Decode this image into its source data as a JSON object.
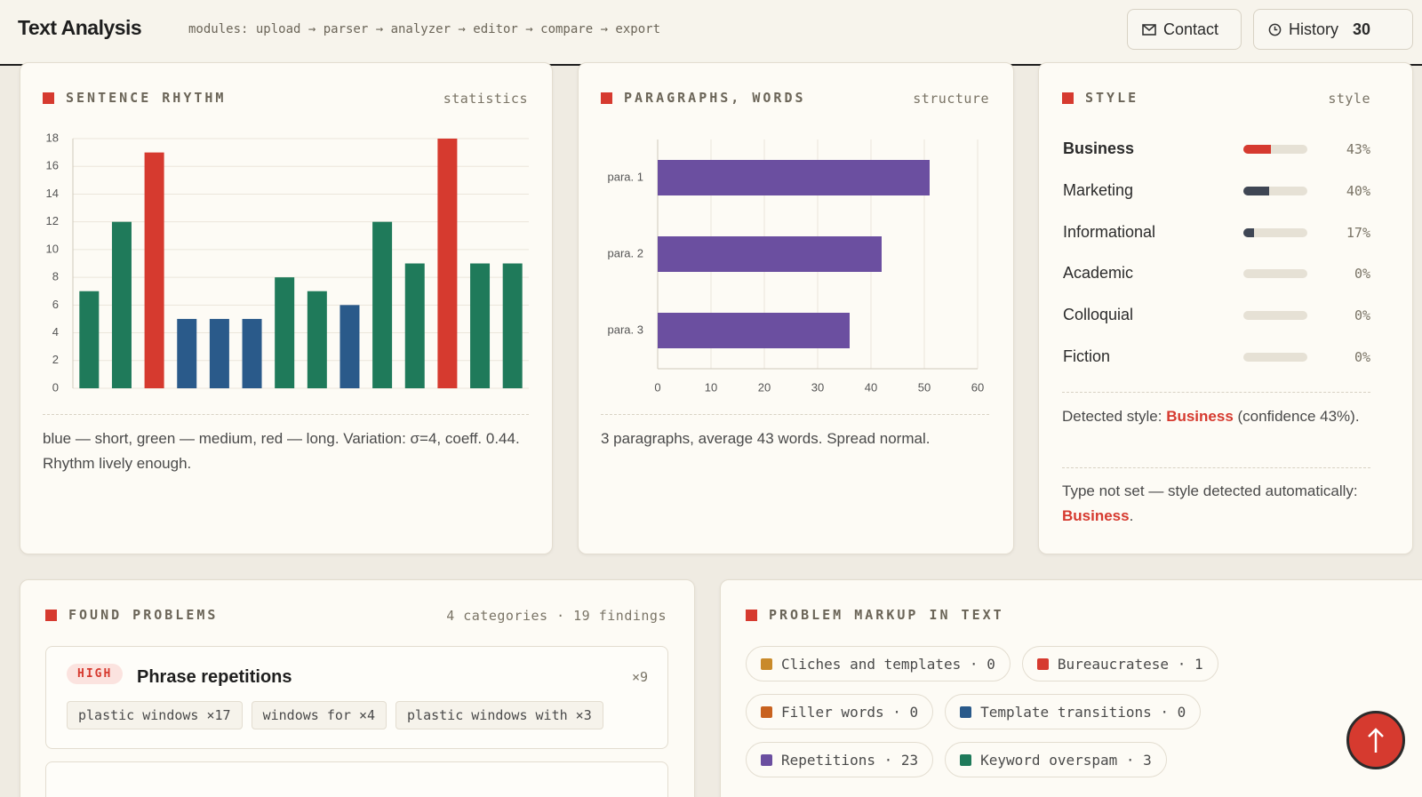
{
  "header": {
    "title": "Text Analysis",
    "modules": "modules: upload → parser → analyzer → editor → compare → export",
    "contact": "Contact",
    "history": "History",
    "history_count": 30
  },
  "rhythm": {
    "heading": "SENTENCE RHYTHM",
    "tag": "statistics",
    "caption": "blue — short, green — medium, red — long. Variation: σ=4, coeff. 0.44. Rhythm lively enough."
  },
  "paragraphs": {
    "heading": "PARAGRAPHS, WORDS",
    "tag": "structure",
    "caption": "3 paragraphs, average 43 words. Spread normal."
  },
  "chart_data": [
    {
      "type": "bar",
      "values": [
        7,
        12,
        17,
        5,
        5,
        5,
        8,
        7,
        6,
        12,
        9,
        18,
        9,
        9
      ],
      "colors": [
        "#1f7a5a",
        "#1f7a5a",
        "#d63a2f",
        "#2a5a8a",
        "#2a5a8a",
        "#2a5a8a",
        "#1f7a5a",
        "#1f7a5a",
        "#2a5a8a",
        "#1f7a5a",
        "#1f7a5a",
        "#d63a2f",
        "#1f7a5a",
        "#1f7a5a"
      ],
      "ylim": [
        0,
        18
      ],
      "yticks": [
        0,
        2,
        4,
        6,
        8,
        10,
        12,
        14,
        16,
        18
      ],
      "grid": true
    },
    {
      "type": "hbar",
      "categories": [
        "para. 1",
        "para. 2",
        "para. 3"
      ],
      "values": [
        51,
        42,
        36
      ],
      "color": "#6b4fa0",
      "xlim": [
        0,
        60
      ],
      "xticks": [
        0,
        10,
        20,
        30,
        40,
        50,
        60
      ],
      "grid": true
    }
  ],
  "style": {
    "heading": "STYLE",
    "tag": "style",
    "items": [
      {
        "name": "Business",
        "value": 43,
        "value_label": "43%",
        "color": "#d63a2f"
      },
      {
        "name": "Marketing",
        "value": 40,
        "value_label": "40%",
        "color": "#3f4654"
      },
      {
        "name": "Informational",
        "value": 17,
        "value_label": "17%",
        "color": "#3f4654"
      },
      {
        "name": "Academic",
        "value": 0,
        "value_label": "0%",
        "color": "#3f4654"
      },
      {
        "name": "Colloquial",
        "value": 0,
        "value_label": "0%",
        "color": "#3f4654"
      },
      {
        "name": "Fiction",
        "value": 0,
        "value_label": "0%",
        "color": "#3f4654"
      }
    ],
    "detected_prefix": "Detected style:",
    "detected_value": "Business",
    "detected_suffix": "(confidence 43%).",
    "note_prefix": "Type not set — style detected automatically:",
    "note_value": "Business",
    "note_suffix": "."
  },
  "problems": {
    "heading": "FOUND PROBLEMS",
    "meta": "4 categories · 19 findings",
    "issues": [
      {
        "badge": "HIGH",
        "title": "Phrase repetitions",
        "count": "×9",
        "tags": [
          "plastic windows ×17",
          "windows for ×4",
          "plastic windows with ×3"
        ]
      }
    ]
  },
  "markup": {
    "heading": "PROBLEM MARKUP IN TEXT",
    "chips": [
      {
        "text": "Cliches and templates · 0",
        "color": "#c98a2a"
      },
      {
        "text": "Bureaucratese · 1",
        "color": "#d63a2f"
      },
      {
        "text": "Filler words · 0",
        "color": "#c8621f"
      },
      {
        "text": "Template transitions · 0",
        "color": "#2a5a8a"
      },
      {
        "text": "Repetitions · 23",
        "color": "#6b4fa0"
      },
      {
        "text": "Keyword overspam · 3",
        "color": "#1f7a5a"
      }
    ]
  }
}
